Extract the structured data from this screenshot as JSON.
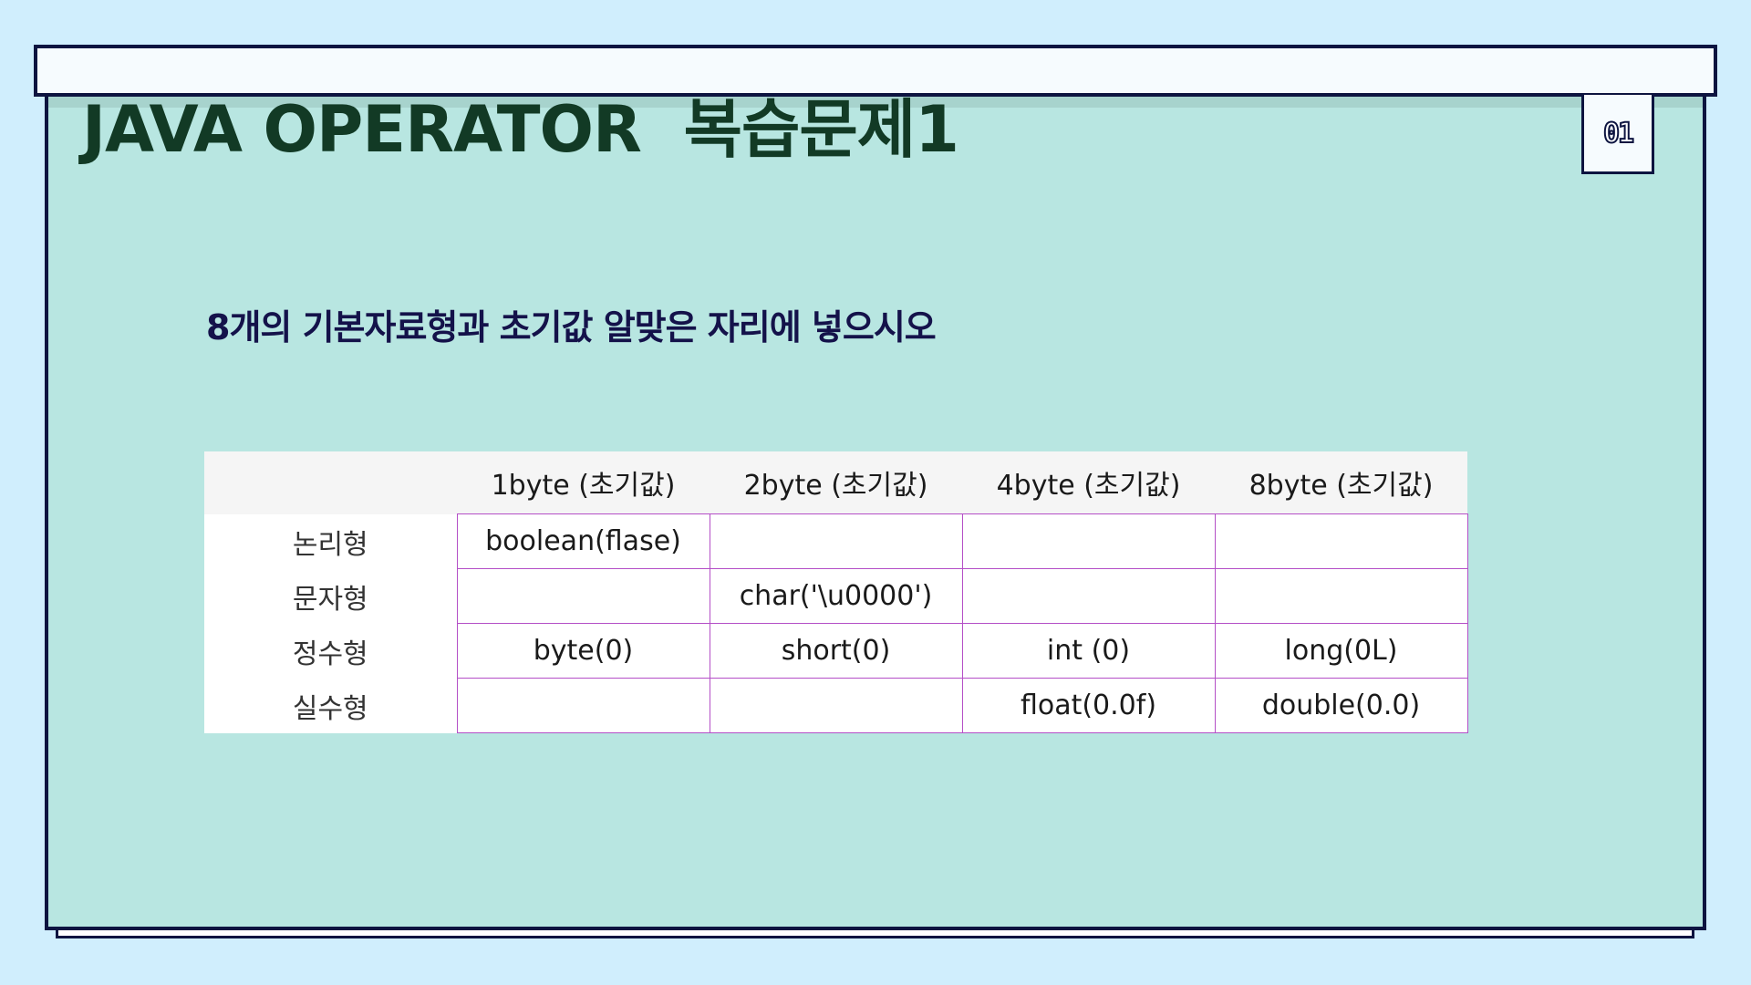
{
  "slide": {
    "title": "JAVA OPERATOR  복습문제1",
    "page_number": "01",
    "question": "8개의 기본자료형과 초기값 알맞은 자리에 넣으시오"
  },
  "table": {
    "corner": "",
    "columns": [
      "1byte (초기값)",
      "2byte (초기값)",
      "4byte (초기값)",
      "8byte (초기값)"
    ],
    "rows": [
      {
        "label": "논리형",
        "cells": [
          "boolean(flase)",
          "",
          "",
          ""
        ]
      },
      {
        "label": "문자형",
        "cells": [
          "",
          "char('\\u0000')",
          "",
          ""
        ]
      },
      {
        "label": "정수형",
        "cells": [
          "byte(0)",
          "short(0)",
          "int  (0)",
          "long(0L)"
        ]
      },
      {
        "label": "실수형",
        "cells": [
          "",
          "",
          "float(0.0f)",
          "double(0.0)"
        ]
      }
    ]
  },
  "colors": {
    "background": "#d0eefd",
    "panel": "#b8e6e1",
    "frame": "#0d1440",
    "title": "#123a25",
    "question": "#14124a",
    "cell_border": "#b44fc7"
  }
}
